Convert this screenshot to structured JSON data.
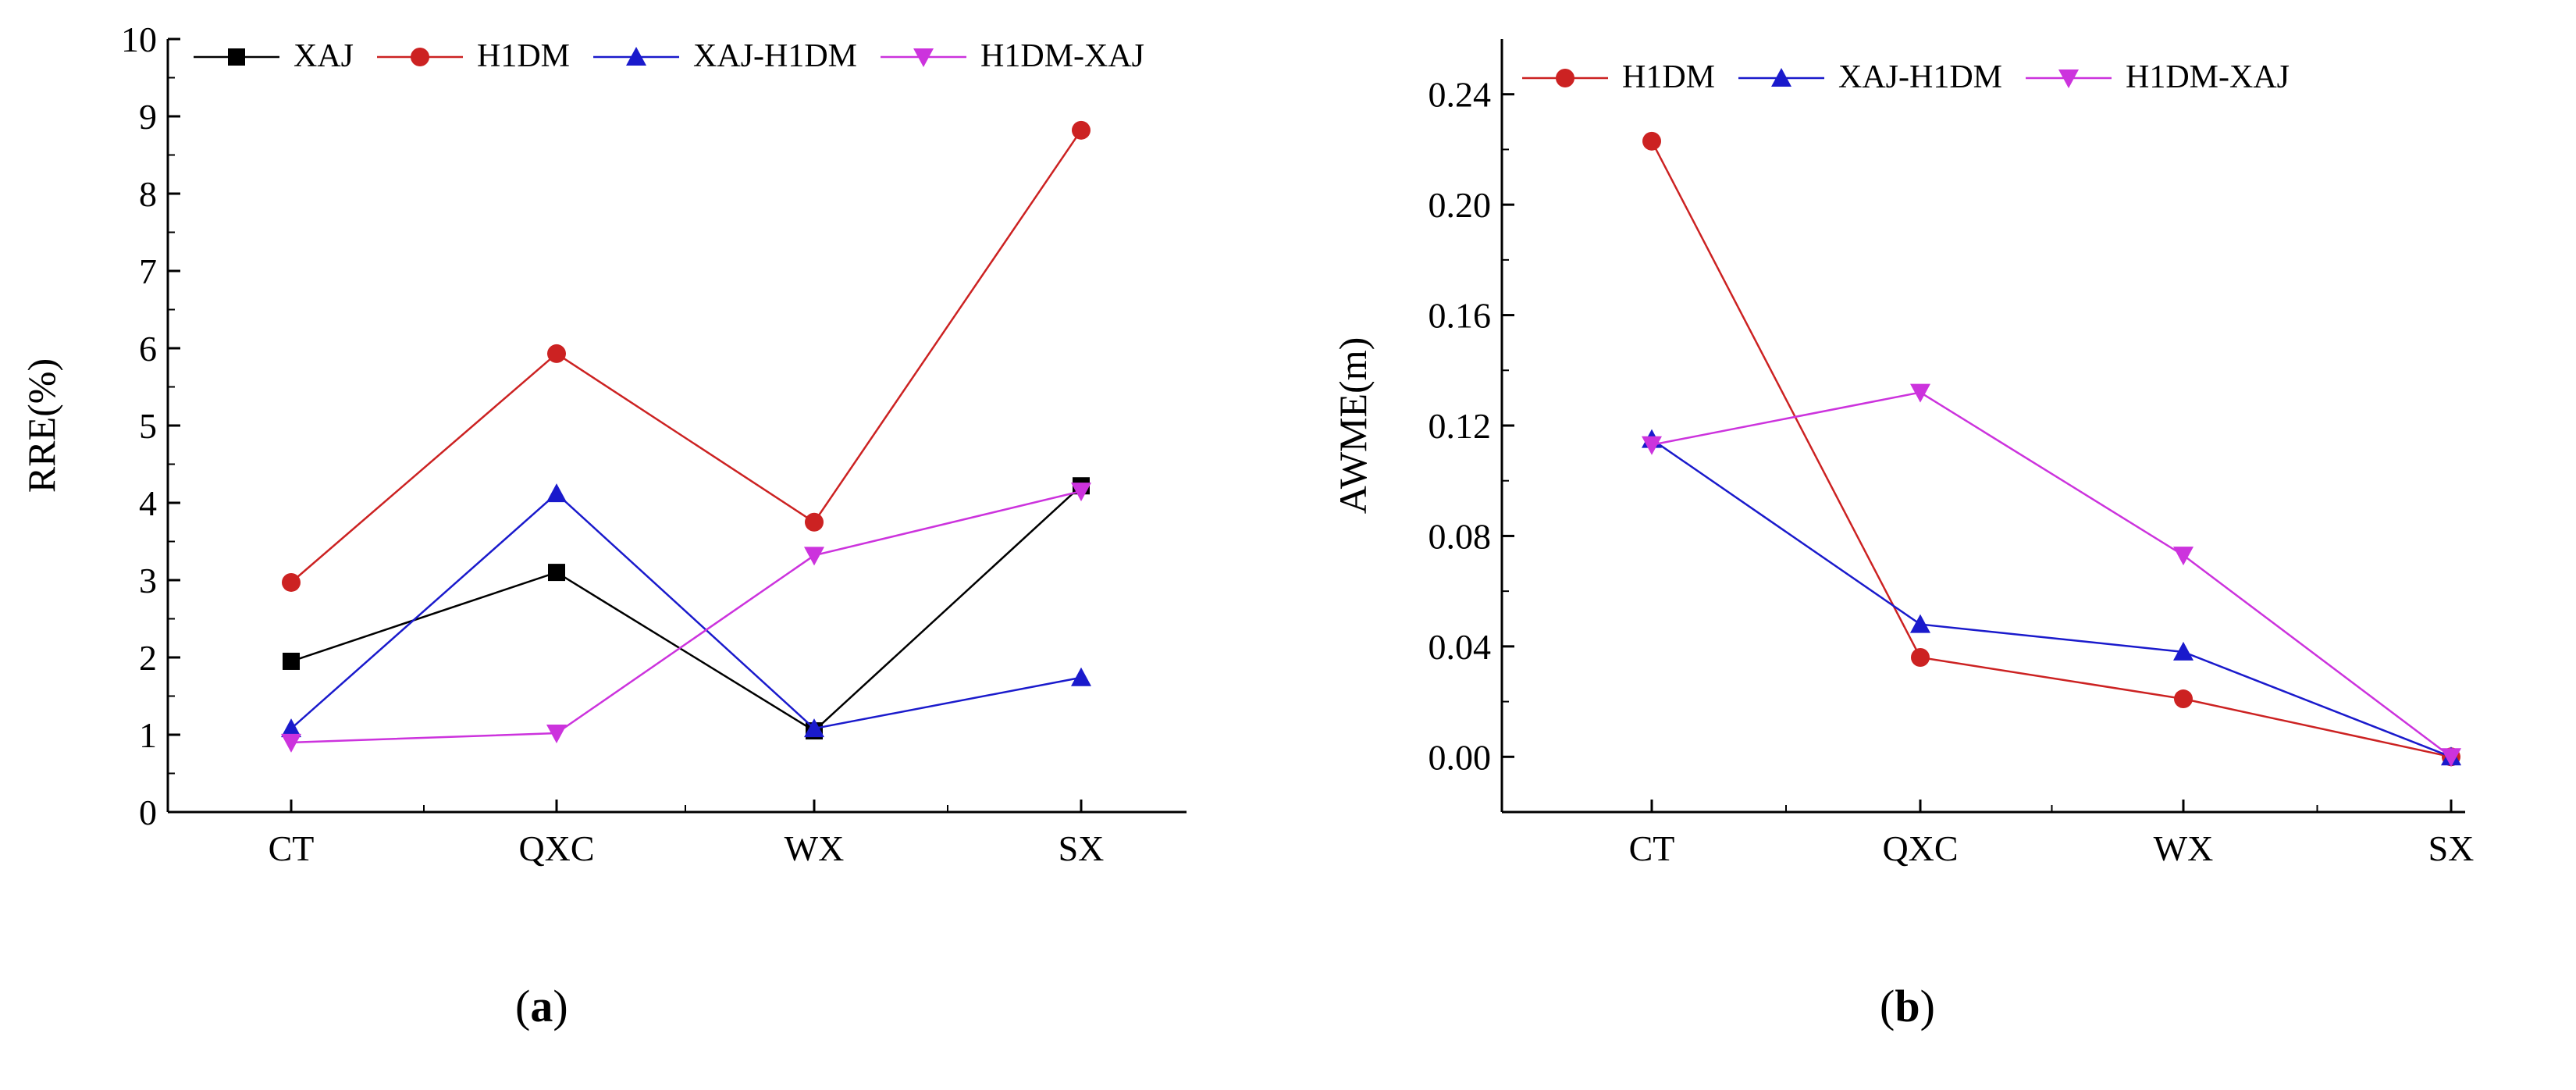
{
  "captions": {
    "a": "a",
    "b": "b"
  },
  "colors": {
    "XAJ": "#000000",
    "H1DM": "#cc2222",
    "XAJ-H1DM": "#1a1acc",
    "H1DM-XAJ": "#cc33dd"
  },
  "chart_data": [
    {
      "type": "line",
      "id": "a",
      "categories": [
        "CT",
        "QXC",
        "WX",
        "SX"
      ],
      "ylabel": "RRE(%)",
      "xlabel": "",
      "ylim": [
        0,
        10
      ],
      "yticks": [
        "0",
        "1",
        "2",
        "3",
        "4",
        "5",
        "6",
        "7",
        "8",
        "9",
        "10"
      ],
      "legend_position": "top",
      "series": [
        {
          "name": "XAJ",
          "marker": "square",
          "values": [
            1.95,
            3.1,
            1.05,
            4.22
          ]
        },
        {
          "name": "H1DM",
          "marker": "circle",
          "values": [
            2.97,
            5.93,
            3.75,
            8.82
          ]
        },
        {
          "name": "XAJ-H1DM",
          "marker": "triangle-up",
          "values": [
            1.08,
            4.12,
            1.08,
            1.74
          ]
        },
        {
          "name": "H1DM-XAJ",
          "marker": "triangle-down",
          "values": [
            0.9,
            1.02,
            3.32,
            4.15
          ]
        }
      ]
    },
    {
      "type": "line",
      "id": "b",
      "categories": [
        "CT",
        "QXC",
        "WX",
        "SX"
      ],
      "ylabel": "AWME(m)",
      "xlabel": "",
      "ylim": [
        -0.02,
        0.26
      ],
      "yticks": [
        "0.00",
        "0.04",
        "0.08",
        "0.12",
        "0.16",
        "0.20",
        "0.24"
      ],
      "legend_position": "top",
      "series": [
        {
          "name": "H1DM",
          "marker": "circle",
          "values": [
            0.223,
            0.036,
            0.021,
            0.0
          ]
        },
        {
          "name": "XAJ-H1DM",
          "marker": "triangle-up",
          "values": [
            0.115,
            0.048,
            0.038,
            0.0
          ]
        },
        {
          "name": "H1DM-XAJ",
          "marker": "triangle-down",
          "values": [
            0.113,
            0.132,
            0.073,
            0.0
          ]
        }
      ]
    }
  ]
}
